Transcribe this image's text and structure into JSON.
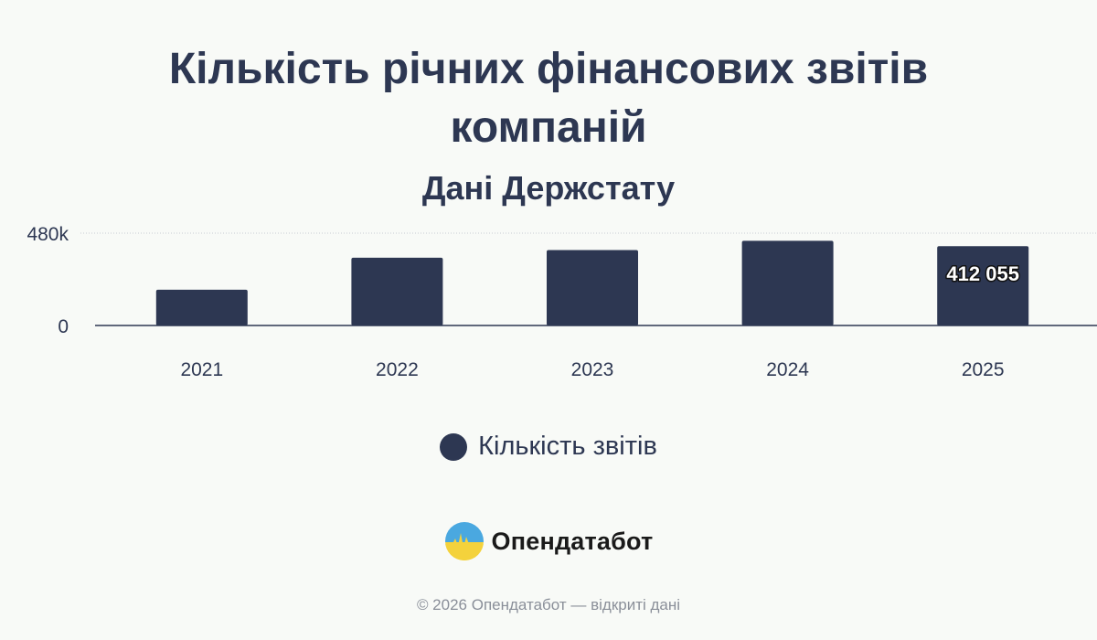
{
  "header": {
    "title": "Кількість річних фінансових звітів компаній",
    "subtitle": "Дані Держстату"
  },
  "legend": {
    "label": "Кількість звітів"
  },
  "brand": {
    "name": "Опендатабот",
    "logo_icon": "opendatabot-logo-icon"
  },
  "footer": {
    "text": "© 2026 Опендатабот — відкриті дані"
  },
  "colors": {
    "bar": "#2d3752",
    "text": "#2d3752",
    "background": "#f8faf7",
    "logo_blue": "#4aa8e0",
    "logo_yellow": "#f4d23c"
  },
  "chart_data": {
    "type": "bar",
    "title": "Кількість річних фінансових звітів компаній",
    "subtitle": "Дані Держстату",
    "categories": [
      "2021",
      "2022",
      "2023",
      "2024",
      "2025"
    ],
    "series": [
      {
        "name": "Кількість звітів",
        "values": [
          186000,
          352000,
          392000,
          440000,
          412055
        ]
      }
    ],
    "ylim": [
      0,
      480000
    ],
    "yticks": [
      {
        "value": 0,
        "label": "0"
      },
      {
        "value": 480000,
        "label": "480k"
      }
    ],
    "data_labels": [
      {
        "category": "2025",
        "text": "412 055"
      }
    ],
    "grid": true,
    "legend_position": "bottom"
  }
}
